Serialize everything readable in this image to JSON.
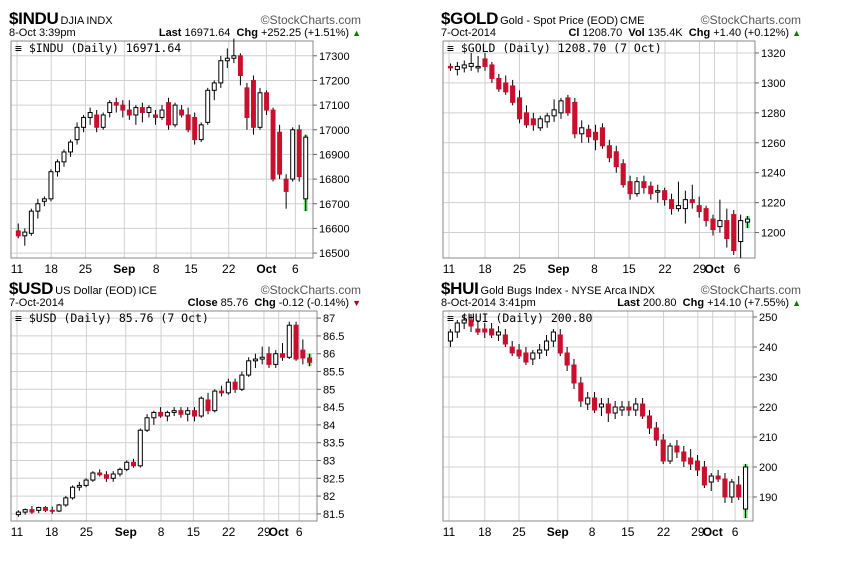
{
  "panels": [
    {
      "symbol": "$INDU",
      "name": "DJIA",
      "exchange": "INDX",
      "logo": "StockCharts.com",
      "date": "8-Oct 3:39pm",
      "quote": [
        {
          "l": "Last",
          "v": "16971.64"
        },
        {
          "l": "Chg",
          "v": "+252.25 (+1.51%)"
        }
      ],
      "chg_dir": "up",
      "chg_color": "#008000",
      "legend": "$INDU (Daily) 16971.64"
    },
    {
      "symbol": "$GOLD",
      "name": "Gold - Spot Price (EOD)",
      "exchange": "CME",
      "logo": "StockCharts.com",
      "date": "7-Oct-2014",
      "quote": [
        {
          "l": "Cl",
          "v": "1208.70"
        },
        {
          "l": "Vol",
          "v": "135.4K"
        },
        {
          "l": "Chg",
          "v": "+1.40 (+0.12%)"
        }
      ],
      "chg_dir": "up",
      "chg_color": "#008000",
      "legend": "$GOLD (Daily) 1208.70 (7 Oct)"
    },
    {
      "symbol": "$USD",
      "name": "US Dollar (EOD)",
      "exchange": "ICE",
      "logo": "StockCharts.com",
      "date": "7-Oct-2014",
      "quote": [
        {
          "l": "Close",
          "v": "85.76"
        },
        {
          "l": "Chg",
          "v": "-0.12 (-0.14%)"
        }
      ],
      "chg_dir": "down",
      "chg_color": "#b00020",
      "legend": "$USD (Daily) 85.76 (7 Oct)"
    },
    {
      "symbol": "$HUI",
      "name": "Gold Bugs Index - NYSE Arca",
      "exchange": "INDX",
      "logo": "StockCharts.com",
      "date": "8-Oct-2014 3:41pm",
      "quote": [
        {
          "l": "Last",
          "v": "200.80"
        },
        {
          "l": "Chg",
          "v": "+14.10 (+7.55%)"
        }
      ],
      "chg_dir": "up",
      "chg_color": "#008000",
      "legend": "$HUI (Daily) 200.80"
    }
  ],
  "colors": {
    "up_body": "#ffffff",
    "down_body": "#c8102e",
    "last_up": "#7ee27e",
    "last_border": "#000000",
    "grid": "#d0d0d0"
  },
  "icons": {
    "logo": "circled-copyright-icon",
    "legend": "line-style-icon",
    "chg_up": "triangle-up-icon",
    "chg_down": "triangle-down-icon"
  },
  "chart_data": [
    {
      "type": "candlestick",
      "symbol": "$INDU",
      "period": "Daily",
      "x_ticks": [
        "11",
        "18",
        "25",
        "Sep",
        "8",
        "15",
        "22",
        "Oct",
        "6"
      ],
      "y_ticks": [
        16500,
        16600,
        16700,
        16800,
        16900,
        17000,
        17100,
        17200,
        17300
      ],
      "ylim": [
        16480,
        17360
      ],
      "grid": true,
      "y_axis_side": "right",
      "candles": [
        [
          16590,
          16620,
          16560,
          16570
        ],
        [
          16570,
          16600,
          16530,
          16585
        ],
        [
          16580,
          16680,
          16570,
          16670
        ],
        [
          16670,
          16720,
          16640,
          16700
        ],
        [
          16710,
          16730,
          16690,
          16720
        ],
        [
          16720,
          16840,
          16710,
          16830
        ],
        [
          16830,
          16880,
          16810,
          16870
        ],
        [
          16870,
          16920,
          16850,
          16910
        ],
        [
          16910,
          16960,
          16890,
          16950
        ],
        [
          16960,
          17030,
          16940,
          17010
        ],
        [
          17010,
          17060,
          16990,
          17050
        ],
        [
          17050,
          17090,
          17020,
          17070
        ],
        [
          17060,
          17080,
          16990,
          17010
        ],
        [
          17010,
          17070,
          17000,
          17060
        ],
        [
          17070,
          17120,
          17050,
          17110
        ],
        [
          17110,
          17130,
          17070,
          17100
        ],
        [
          17100,
          17120,
          17050,
          17080
        ],
        [
          17080,
          17120,
          17040,
          17060
        ],
        [
          17060,
          17100,
          17020,
          17090
        ],
        [
          17090,
          17110,
          17030,
          17070
        ],
        [
          17070,
          17100,
          17050,
          17090
        ],
        [
          17060,
          17080,
          17020,
          17050
        ],
        [
          17050,
          17100,
          17040,
          17080
        ],
        [
          17110,
          17130,
          17000,
          17020
        ],
        [
          17020,
          17110,
          17010,
          17100
        ],
        [
          17080,
          17100,
          17050,
          17060
        ],
        [
          17060,
          17090,
          16990,
          17000
        ],
        [
          17050,
          17070,
          16940,
          16960
        ],
        [
          16960,
          17030,
          16950,
          17020
        ],
        [
          17030,
          17170,
          17020,
          17160
        ],
        [
          17160,
          17200,
          17120,
          17190
        ],
        [
          17190,
          17300,
          17170,
          17280
        ],
        [
          17280,
          17330,
          17250,
          17290
        ],
        [
          17290,
          17370,
          17270,
          17300
        ],
        [
          17300,
          17310,
          17180,
          17220
        ],
        [
          17170,
          17190,
          17000,
          17050
        ],
        [
          17200,
          17220,
          16980,
          17010
        ],
        [
          17010,
          17170,
          17000,
          17150
        ],
        [
          17150,
          17160,
          17060,
          17080
        ],
        [
          17080,
          17090,
          16790,
          16800
        ],
        [
          16990,
          17020,
          16800,
          16820
        ],
        [
          16800,
          16820,
          16680,
          16750
        ],
        [
          16800,
          17010,
          16790,
          17000
        ],
        [
          17000,
          17020,
          16790,
          16810
        ],
        [
          16720,
          16980,
          16670,
          16970
        ]
      ]
    },
    {
      "type": "candlestick",
      "symbol": "$GOLD",
      "period": "Daily",
      "x_ticks": [
        "11",
        "18",
        "25",
        "Sep",
        "8",
        "15",
        "22",
        "29",
        "Oct",
        "6"
      ],
      "y_ticks": [
        1200,
        1220,
        1240,
        1260,
        1280,
        1300,
        1320
      ],
      "ylim": [
        1183,
        1328
      ],
      "grid": true,
      "y_axis_side": "right",
      "candles": [
        [
          1311,
          1313,
          1308,
          1310
        ],
        [
          1309,
          1314,
          1305,
          1311
        ],
        [
          1310,
          1315,
          1307,
          1312
        ],
        [
          1311,
          1320,
          1308,
          1313
        ],
        [
          1310,
          1318,
          1307,
          1311
        ],
        [
          1316,
          1320,
          1308,
          1311
        ],
        [
          1312,
          1314,
          1300,
          1303
        ],
        [
          1303,
          1306,
          1294,
          1296
        ],
        [
          1300,
          1305,
          1292,
          1294
        ],
        [
          1298,
          1302,
          1285,
          1287
        ],
        [
          1290,
          1295,
          1273,
          1276
        ],
        [
          1280,
          1285,
          1270,
          1272
        ],
        [
          1276,
          1280,
          1268,
          1272
        ],
        [
          1270,
          1278,
          1268,
          1276
        ],
        [
          1274,
          1280,
          1270,
          1278
        ],
        [
          1278,
          1289,
          1274,
          1282
        ],
        [
          1280,
          1290,
          1276,
          1288
        ],
        [
          1290,
          1292,
          1278,
          1280
        ],
        [
          1287,
          1290,
          1263,
          1266
        ],
        [
          1266,
          1275,
          1260,
          1270
        ],
        [
          1269,
          1272,
          1260,
          1264
        ],
        [
          1267,
          1272,
          1255,
          1262
        ],
        [
          1270,
          1273,
          1256,
          1258
        ],
        [
          1258,
          1262,
          1247,
          1250
        ],
        [
          1254,
          1258,
          1240,
          1244
        ],
        [
          1246,
          1249,
          1230,
          1232
        ],
        [
          1234,
          1238,
          1222,
          1226
        ],
        [
          1226,
          1237,
          1224,
          1234
        ],
        [
          1234,
          1238,
          1226,
          1230
        ],
        [
          1231,
          1234,
          1222,
          1226
        ],
        [
          1227,
          1232,
          1220,
          1228
        ],
        [
          1228,
          1230,
          1218,
          1222
        ],
        [
          1222,
          1226,
          1212,
          1216
        ],
        [
          1216,
          1234,
          1214,
          1218
        ],
        [
          1216,
          1228,
          1206,
          1222
        ],
        [
          1222,
          1232,
          1216,
          1220
        ],
        [
          1218,
          1224,
          1210,
          1214
        ],
        [
          1216,
          1218,
          1204,
          1208
        ],
        [
          1209,
          1212,
          1198,
          1202
        ],
        [
          1204,
          1222,
          1200,
          1208
        ],
        [
          1208,
          1216,
          1190,
          1196
        ],
        [
          1212,
          1215,
          1185,
          1188
        ],
        [
          1194,
          1212,
          1183,
          1208
        ],
        [
          1207,
          1211,
          1203,
          1209
        ]
      ]
    },
    {
      "type": "candlestick",
      "symbol": "$USD",
      "period": "Daily",
      "x_ticks": [
        "11",
        "18",
        "25",
        "Sep",
        "8",
        "15",
        "22",
        "29",
        "Oct",
        "6"
      ],
      "y_ticks": [
        81.5,
        82.0,
        82.5,
        83.0,
        83.5,
        84.0,
        84.5,
        85.0,
        85.5,
        86.0,
        86.5,
        87.0
      ],
      "ylim": [
        81.3,
        87.2
      ],
      "grid": true,
      "y_axis_side": "right",
      "candles": [
        [
          81.48,
          81.6,
          81.42,
          81.55
        ],
        [
          81.55,
          81.65,
          81.48,
          81.62
        ],
        [
          81.62,
          81.72,
          81.5,
          81.55
        ],
        [
          81.6,
          81.7,
          81.52,
          81.68
        ],
        [
          81.68,
          81.72,
          81.55,
          81.6
        ],
        [
          81.6,
          81.7,
          81.5,
          81.58
        ],
        [
          81.58,
          81.78,
          81.55,
          81.75
        ],
        [
          81.75,
          82.0,
          81.7,
          81.95
        ],
        [
          81.95,
          82.3,
          81.9,
          82.25
        ],
        [
          82.25,
          82.4,
          82.15,
          82.3
        ],
        [
          82.3,
          82.5,
          82.25,
          82.45
        ],
        [
          82.45,
          82.7,
          82.4,
          82.65
        ],
        [
          82.65,
          82.75,
          82.55,
          82.6
        ],
        [
          82.6,
          82.7,
          82.4,
          82.5
        ],
        [
          82.5,
          82.7,
          82.4,
          82.62
        ],
        [
          82.62,
          82.8,
          82.55,
          82.75
        ],
        [
          82.75,
          83.0,
          82.7,
          82.95
        ],
        [
          82.95,
          83.05,
          82.8,
          82.85
        ],
        [
          82.85,
          83.9,
          82.8,
          83.85
        ],
        [
          83.85,
          84.3,
          83.8,
          84.2
        ],
        [
          84.2,
          84.4,
          84.0,
          84.35
        ],
        [
          84.35,
          84.5,
          84.2,
          84.25
        ],
        [
          84.25,
          84.4,
          84.1,
          84.35
        ],
        [
          84.35,
          84.5,
          84.25,
          84.4
        ],
        [
          84.4,
          84.5,
          84.2,
          84.3
        ],
        [
          84.3,
          84.5,
          84.1,
          84.4
        ],
        [
          84.4,
          84.5,
          84.1,
          84.25
        ],
        [
          84.25,
          84.8,
          84.2,
          84.75
        ],
        [
          84.7,
          84.9,
          84.3,
          84.4
        ],
        [
          84.4,
          85.0,
          84.35,
          84.95
        ],
        [
          84.95,
          85.1,
          84.8,
          84.9
        ],
        [
          84.9,
          85.3,
          84.85,
          85.2
        ],
        [
          85.2,
          85.3,
          84.9,
          85.0
        ],
        [
          85.0,
          85.5,
          84.95,
          85.4
        ],
        [
          85.4,
          85.9,
          85.35,
          85.8
        ],
        [
          85.8,
          86.0,
          85.6,
          85.85
        ],
        [
          85.85,
          86.2,
          85.7,
          85.9
        ],
        [
          86.0,
          86.2,
          85.6,
          85.7
        ],
        [
          85.7,
          86.1,
          85.6,
          86.0
        ],
        [
          86.0,
          86.3,
          85.8,
          85.9
        ],
        [
          85.9,
          86.9,
          85.85,
          86.8
        ],
        [
          86.8,
          86.9,
          85.8,
          85.85
        ],
        [
          86.1,
          86.4,
          85.7,
          85.88
        ],
        [
          85.88,
          86.0,
          85.65,
          85.76
        ]
      ]
    },
    {
      "type": "candlestick",
      "symbol": "$HUI",
      "period": "Daily",
      "x_ticks": [
        "11",
        "18",
        "25",
        "Sep",
        "8",
        "15",
        "22",
        "29",
        "Oct",
        "6"
      ],
      "y_ticks": [
        190,
        200,
        210,
        220,
        230,
        240,
        250
      ],
      "ylim": [
        182,
        252
      ],
      "grid": true,
      "y_axis_side": "right",
      "candles": [
        [
          242,
          246,
          240,
          245
        ],
        [
          245,
          249,
          243,
          248
        ],
        [
          248,
          251,
          246,
          249
        ],
        [
          249,
          251,
          245,
          247
        ],
        [
          246,
          249,
          244,
          245
        ],
        [
          246,
          248,
          243,
          245
        ],
        [
          246,
          248,
          243,
          244
        ],
        [
          244,
          247,
          242,
          245
        ],
        [
          244,
          246,
          240,
          241
        ],
        [
          240,
          242,
          237,
          238
        ],
        [
          239,
          241,
          236,
          237
        ],
        [
          238,
          240,
          234,
          235
        ],
        [
          236,
          239,
          234,
          238
        ],
        [
          238,
          241,
          236,
          239
        ],
        [
          239,
          244,
          237,
          242
        ],
        [
          242,
          246,
          240,
          245
        ],
        [
          244,
          246,
          237,
          238
        ],
        [
          238,
          240,
          232,
          234
        ],
        [
          234,
          236,
          226,
          228
        ],
        [
          228,
          230,
          220,
          222
        ],
        [
          221,
          225,
          219,
          223
        ],
        [
          223,
          225,
          218,
          219
        ],
        [
          220,
          223,
          217,
          221
        ],
        [
          221,
          223,
          215,
          218
        ],
        [
          218,
          222,
          216,
          220
        ],
        [
          219,
          222,
          217,
          220
        ],
        [
          220,
          222,
          217,
          219
        ],
        [
          219,
          223,
          217,
          221
        ],
        [
          221,
          223,
          216,
          217
        ],
        [
          217,
          219,
          211,
          213
        ],
        [
          213,
          215,
          207,
          209
        ],
        [
          209,
          211,
          201,
          202
        ],
        [
          202,
          208,
          201,
          207
        ],
        [
          207,
          209,
          203,
          205
        ],
        [
          205,
          207,
          200,
          202
        ],
        [
          203,
          206,
          199,
          201
        ],
        [
          202,
          204,
          197,
          199
        ],
        [
          200,
          202,
          193,
          194
        ],
        [
          195,
          198,
          192,
          197
        ],
        [
          197,
          199,
          195,
          196
        ],
        [
          196,
          198,
          188,
          190
        ],
        [
          190,
          196,
          188,
          195
        ],
        [
          194,
          197,
          189,
          190
        ],
        [
          186,
          201,
          183,
          200
        ]
      ]
    }
  ]
}
